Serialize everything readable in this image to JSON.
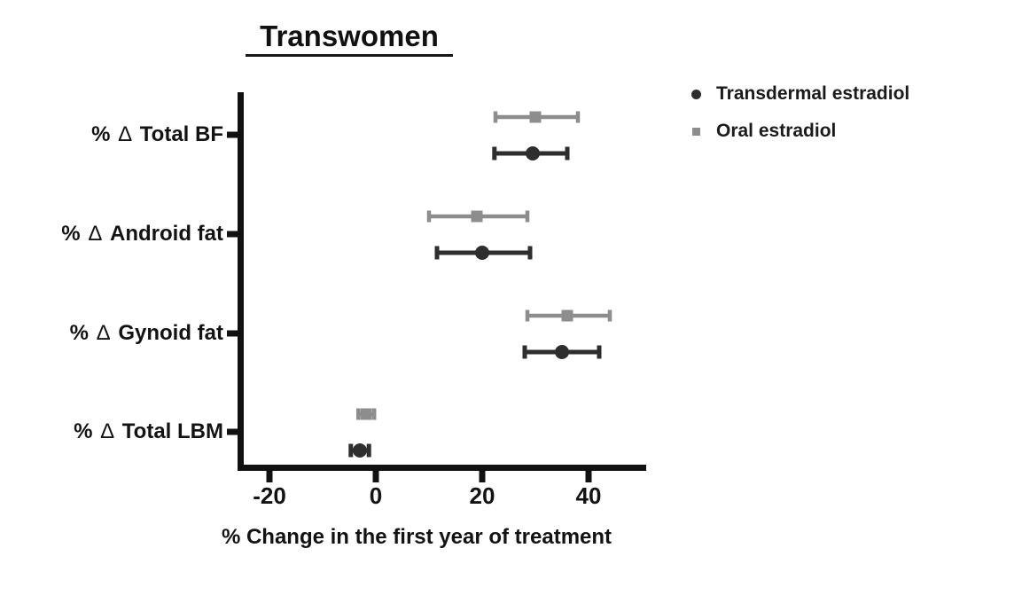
{
  "chart_data": {
    "type": "scatter",
    "orientation": "horizontal",
    "error_bars": true,
    "title": "Transwomen",
    "xlabel": "% Change in the first year of treatment",
    "categories": [
      "% Δ Total BF",
      "% Δ Android fat",
      "% Δ Gynoid fat",
      "% Δ Total LBM"
    ],
    "xticks": [
      -20,
      0,
      20,
      40
    ],
    "xlim": [
      -26,
      51
    ],
    "grid": false,
    "legend_position": "top-right",
    "series": [
      {
        "name": "Transdermal estradiol",
        "marker": "circle",
        "color": "#2e2e2e",
        "means": [
          29.5,
          20.0,
          35.0,
          -3.0
        ],
        "ci_low": [
          22.3,
          11.5,
          28.0,
          -4.7
        ],
        "ci_high": [
          36.0,
          29.0,
          42.0,
          -1.3
        ]
      },
      {
        "name": "Oral estradiol",
        "marker": "square",
        "color": "#8d8d8d",
        "means": [
          30.0,
          19.0,
          36.0,
          -1.8
        ],
        "ci_low": [
          22.5,
          10.0,
          28.5,
          -3.3
        ],
        "ci_high": [
          38.0,
          28.5,
          44.0,
          -0.3
        ]
      }
    ],
    "axis_color": "#111111",
    "text_color": "#131313"
  }
}
